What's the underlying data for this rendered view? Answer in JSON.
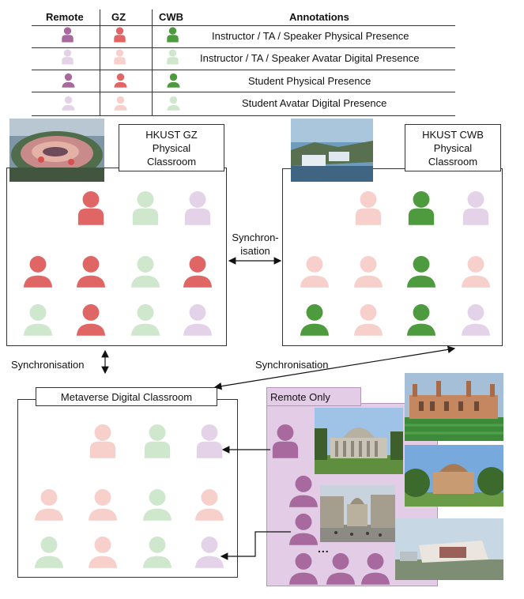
{
  "legend": {
    "headers": {
      "remote": "Remote",
      "gz": "GZ",
      "cwb": "CWB",
      "annotations": "Annotations"
    },
    "rows": [
      {
        "text": "Instructor / TA / Speaker Physical Presence"
      },
      {
        "text": "Instructor / TA / Speaker Avatar Digital Presence"
      },
      {
        "text": "Student Physical Presence"
      },
      {
        "text": "Student Avatar Digital Presence"
      }
    ]
  },
  "colors": {
    "remote": "#a86a9e",
    "remote_light": "#e4d3e8",
    "gz": "#e06666",
    "gz_light": "#f7cfcb",
    "cwb": "#4e9a3e",
    "cwb_light": "#cfe7cd",
    "remote_only_bg": "#e3cce6"
  },
  "gz_classroom": {
    "label": "HKUST GZ\nPhysical\nClassroom"
  },
  "cwb_classroom": {
    "label": "HKUST CWB\nPhysical\nClassroom"
  },
  "metaverse": {
    "label": "Metaverse Digital Classroom"
  },
  "remote_only": {
    "label": "Remote Only",
    "ellipsis_1": "...",
    "ellipsis_2": "..."
  },
  "arrows": {
    "sync_mid": "Synchron-\nisation",
    "sync_left": "Synchronisation",
    "sync_right": "Synchronisation"
  },
  "icons": [
    "person-icon",
    "campus-photo"
  ]
}
